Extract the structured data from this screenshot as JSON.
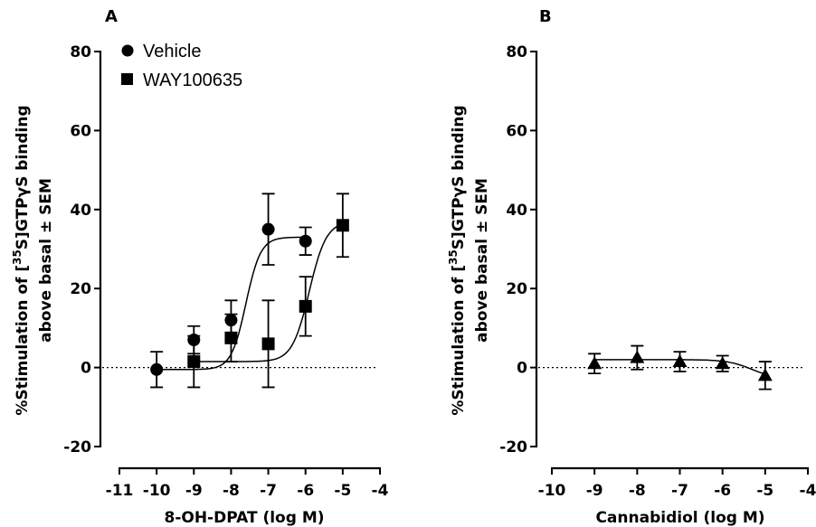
{
  "chart_data": [
    {
      "type": "scatter",
      "panel_label": "A",
      "xlabel": "8-OH-DPAT (log M)",
      "ylabel_line1": "%Stimulation of [",
      "ylabel_sup": "35",
      "ylabel_line1_end": "S]GTPγS binding",
      "ylabel_line2": "above basal ± SEM",
      "xlim": [
        -11,
        -4
      ],
      "ylim": [
        -20,
        80
      ],
      "x_ticks": [
        -11,
        -10,
        -9,
        -8,
        -7,
        -6,
        -5,
        -4
      ],
      "y_ticks": [
        -20,
        0,
        20,
        40,
        60,
        80
      ],
      "reference_line_y": 0,
      "legend_position": "top-left",
      "series": [
        {
          "name": "Vehicle",
          "marker": "circle",
          "x": [
            -10,
            -9,
            -8,
            -7,
            -6
          ],
          "y": [
            -0.5,
            7,
            12,
            35,
            32
          ],
          "sem": [
            4.5,
            3.5,
            5,
            9,
            3.5
          ],
          "curve": {
            "bottom": -0.5,
            "top": 33,
            "logEC50": -7.6,
            "hill": 2.2,
            "xrange": [
              -10,
              -6
            ]
          }
        },
        {
          "name": "WAY100635",
          "marker": "square",
          "x": [
            -9,
            -8,
            -7,
            -6,
            -5
          ],
          "y": [
            1.5,
            7.5,
            6,
            15.5,
            36
          ],
          "sem": [
            6.5,
            6,
            11,
            7.5,
            8
          ],
          "curve": {
            "bottom": 1.5,
            "top": 37,
            "logEC50": -5.9,
            "hill": 1.9,
            "xrange": [
              -9,
              -5
            ]
          }
        }
      ]
    },
    {
      "type": "scatter",
      "panel_label": "B",
      "xlabel": "Cannabidiol (log M)",
      "ylabel_line1": "%Stimulation of [",
      "ylabel_sup": "35",
      "ylabel_line1_end": "S]GTPγS binding",
      "ylabel_line2": "above basal ± SEM",
      "xlim": [
        -10,
        -4
      ],
      "ylim": [
        -20,
        80
      ],
      "x_ticks": [
        -10,
        -9,
        -8,
        -7,
        -6,
        -5,
        -4
      ],
      "y_ticks": [
        -20,
        0,
        20,
        40,
        60,
        80
      ],
      "reference_line_y": 0,
      "series": [
        {
          "marker": "triangle",
          "x": [
            -9,
            -8,
            -7,
            -6,
            -5
          ],
          "y": [
            1,
            2.5,
            1.5,
            1,
            -2
          ],
          "sem": [
            2.5,
            3,
            2.5,
            2,
            3.5
          ],
          "curve": {
            "bottom": 2,
            "top": -3,
            "logEC50": -5.3,
            "hill": 1.5,
            "xrange": [
              -9,
              -5
            ]
          }
        }
      ]
    }
  ]
}
